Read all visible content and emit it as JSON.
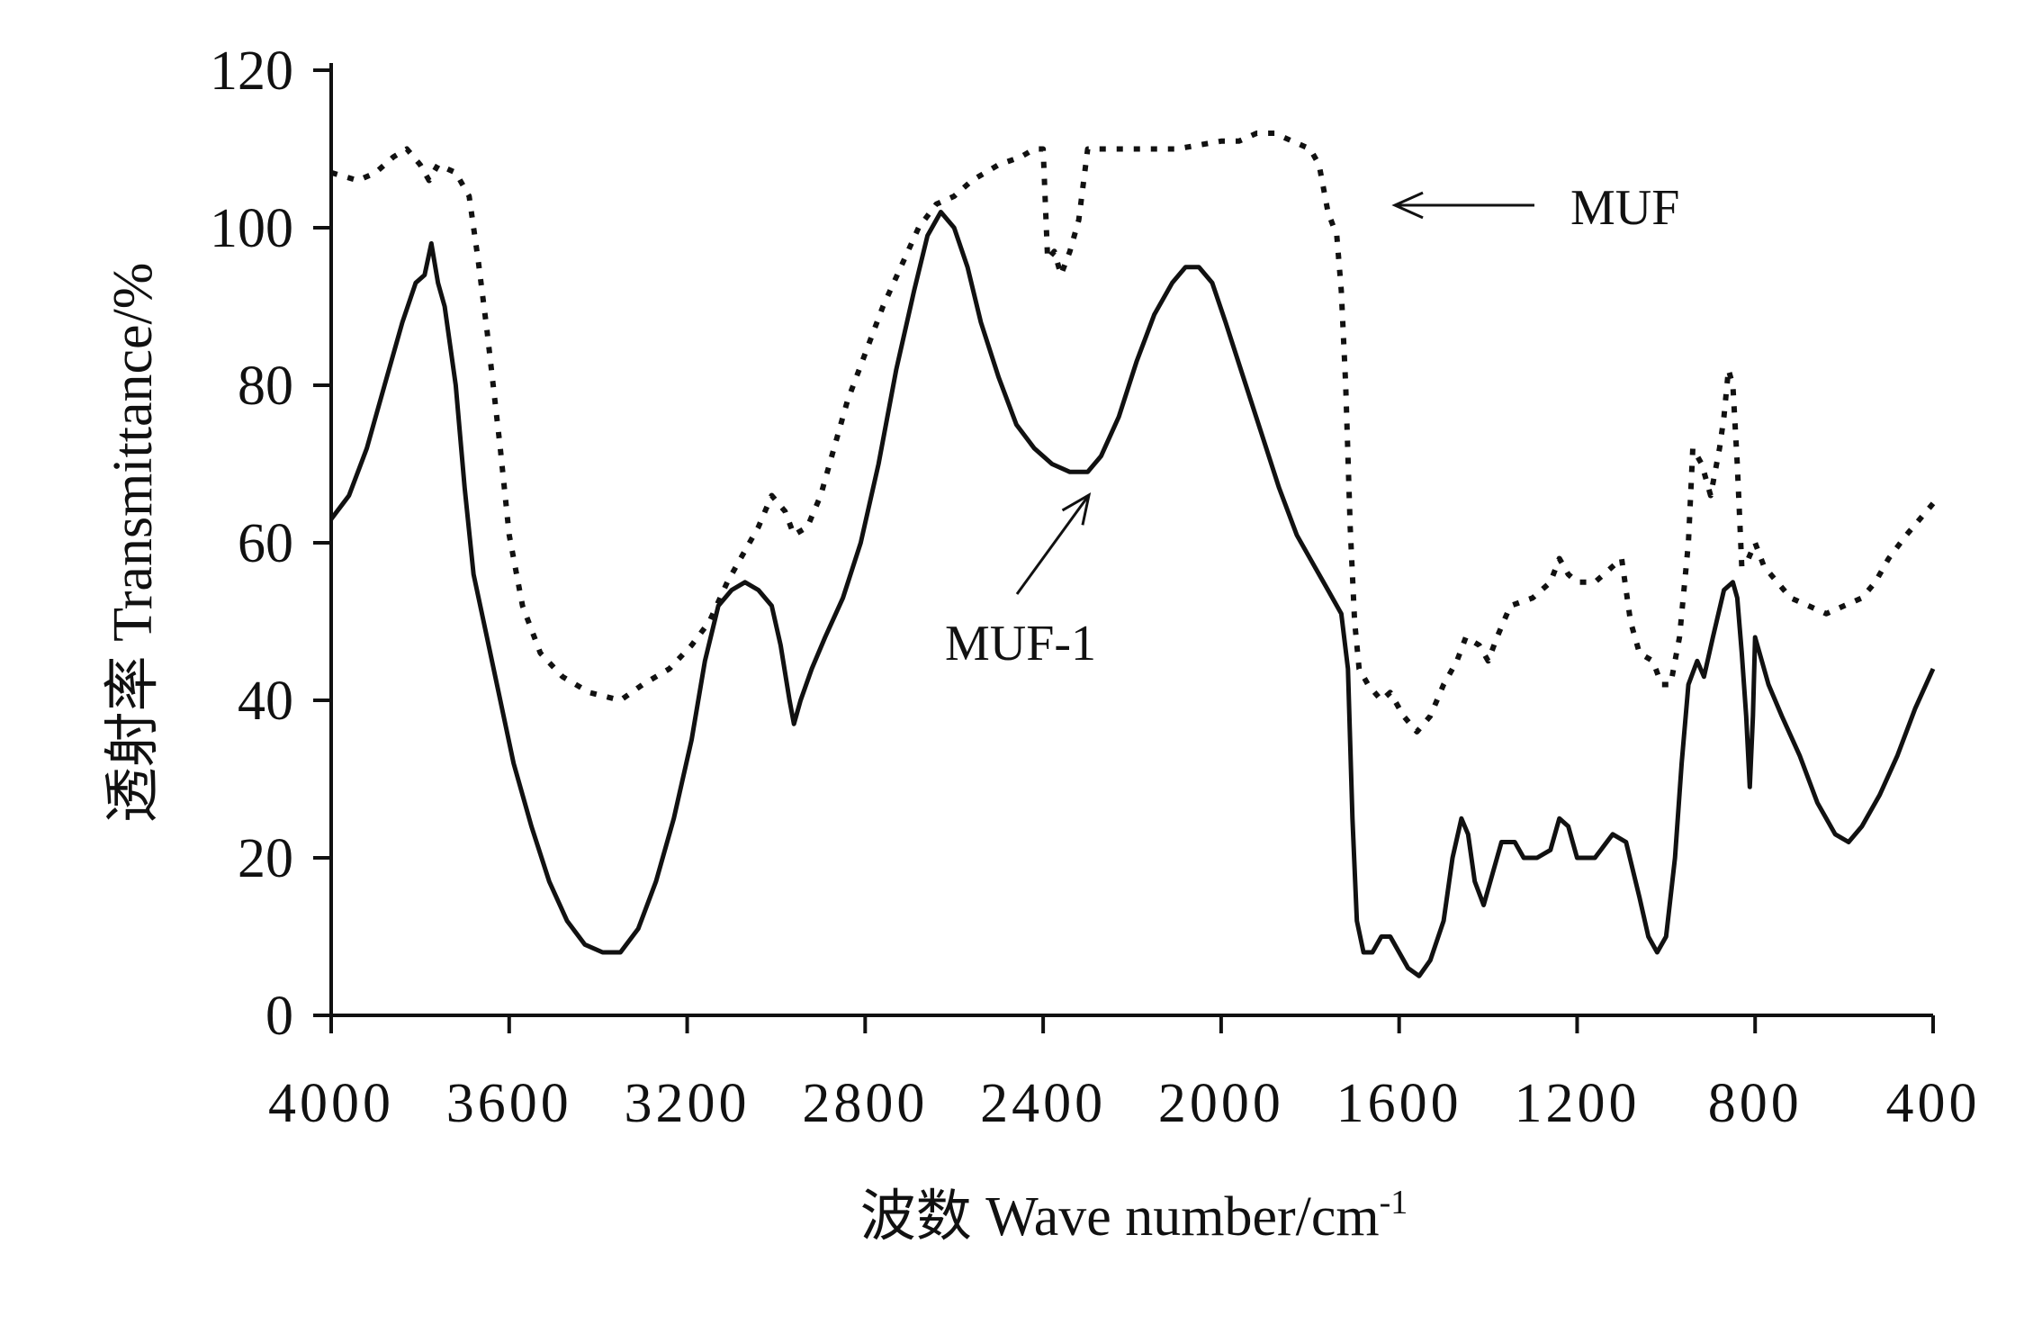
{
  "chart_data": {
    "type": "line",
    "xlabel": "波数 Wave number/cm",
    "xlabel_sup": "-1",
    "ylabel": "透射率 Transmittance/%",
    "xlim": [
      4000,
      400
    ],
    "ylim": [
      0,
      120
    ],
    "x_reversed": true,
    "grid": false,
    "x_ticks": [
      "4000",
      "3600",
      "3200",
      "2800",
      "2400",
      "2000",
      "1600",
      "1200",
      "800",
      "400"
    ],
    "y_ticks": [
      "0",
      "20",
      "40",
      "60",
      "80",
      "100",
      "120"
    ],
    "series": [
      {
        "name": "MUF",
        "style": "dotted",
        "color": "#111111",
        "points": [
          [
            4000,
            107
          ],
          [
            3940,
            106
          ],
          [
            3900,
            107
          ],
          [
            3860,
            109
          ],
          [
            3830,
            110
          ],
          [
            3800,
            108
          ],
          [
            3780,
            106
          ],
          [
            3760,
            108
          ],
          [
            3720,
            107
          ],
          [
            3690,
            104
          ],
          [
            3670,
            96
          ],
          [
            3650,
            87
          ],
          [
            3620,
            72
          ],
          [
            3600,
            61
          ],
          [
            3570,
            52
          ],
          [
            3530,
            46
          ],
          [
            3480,
            43
          ],
          [
            3420,
            41
          ],
          [
            3350,
            40
          ],
          [
            3300,
            42
          ],
          [
            3240,
            44
          ],
          [
            3190,
            47
          ],
          [
            3150,
            50
          ],
          [
            3110,
            55
          ],
          [
            3070,
            59
          ],
          [
            3040,
            62
          ],
          [
            3010,
            66
          ],
          [
            2980,
            64
          ],
          [
            2960,
            61
          ],
          [
            2930,
            62
          ],
          [
            2900,
            66
          ],
          [
            2870,
            72
          ],
          [
            2840,
            78
          ],
          [
            2800,
            84
          ],
          [
            2760,
            90
          ],
          [
            2720,
            95
          ],
          [
            2680,
            100
          ],
          [
            2640,
            103
          ],
          [
            2600,
            104
          ],
          [
            2560,
            106
          ],
          [
            2500,
            108
          ],
          [
            2450,
            109
          ],
          [
            2420,
            110
          ],
          [
            2400,
            110
          ],
          [
            2390,
            96
          ],
          [
            2375,
            97
          ],
          [
            2360,
            94
          ],
          [
            2340,
            97
          ],
          [
            2320,
            101
          ],
          [
            2300,
            110
          ],
          [
            2200,
            110
          ],
          [
            2100,
            110
          ],
          [
            2000,
            111
          ],
          [
            1960,
            111
          ],
          [
            1920,
            112
          ],
          [
            1880,
            112
          ],
          [
            1840,
            111
          ],
          [
            1800,
            110
          ],
          [
            1780,
            108
          ],
          [
            1760,
            102
          ],
          [
            1740,
            99
          ],
          [
            1730,
            92
          ],
          [
            1720,
            80
          ],
          [
            1710,
            62
          ],
          [
            1700,
            50
          ],
          [
            1690,
            44
          ],
          [
            1670,
            42
          ],
          [
            1640,
            40
          ],
          [
            1620,
            41
          ],
          [
            1590,
            38
          ],
          [
            1560,
            36
          ],
          [
            1530,
            38
          ],
          [
            1500,
            42
          ],
          [
            1470,
            45
          ],
          [
            1450,
            48
          ],
          [
            1420,
            47
          ],
          [
            1400,
            45
          ],
          [
            1380,
            48
          ],
          [
            1350,
            52
          ],
          [
            1300,
            53
          ],
          [
            1260,
            55
          ],
          [
            1240,
            58
          ],
          [
            1220,
            56
          ],
          [
            1200,
            55
          ],
          [
            1160,
            55
          ],
          [
            1120,
            57
          ],
          [
            1100,
            58
          ],
          [
            1080,
            50
          ],
          [
            1060,
            46
          ],
          [
            1030,
            45
          ],
          [
            1010,
            42
          ],
          [
            990,
            42
          ],
          [
            970,
            48
          ],
          [
            950,
            60
          ],
          [
            940,
            72
          ],
          [
            920,
            70
          ],
          [
            900,
            66
          ],
          [
            880,
            72
          ],
          [
            870,
            76
          ],
          [
            860,
            82
          ],
          [
            850,
            80
          ],
          [
            840,
            70
          ],
          [
            830,
            57
          ],
          [
            815,
            58
          ],
          [
            800,
            60
          ],
          [
            780,
            57
          ],
          [
            750,
            55
          ],
          [
            720,
            53
          ],
          [
            680,
            52
          ],
          [
            640,
            51
          ],
          [
            600,
            52
          ],
          [
            560,
            53
          ],
          [
            530,
            55
          ],
          [
            500,
            58
          ],
          [
            460,
            61
          ],
          [
            430,
            63
          ],
          [
            400,
            65
          ]
        ]
      },
      {
        "name": "MUF-1",
        "style": "solid",
        "color": "#111111",
        "points": [
          [
            4000,
            63
          ],
          [
            3960,
            66
          ],
          [
            3920,
            72
          ],
          [
            3880,
            80
          ],
          [
            3840,
            88
          ],
          [
            3810,
            93
          ],
          [
            3790,
            94
          ],
          [
            3775,
            98
          ],
          [
            3760,
            93
          ],
          [
            3745,
            90
          ],
          [
            3720,
            80
          ],
          [
            3700,
            67
          ],
          [
            3680,
            56
          ],
          [
            3650,
            48
          ],
          [
            3620,
            40
          ],
          [
            3590,
            32
          ],
          [
            3550,
            24
          ],
          [
            3510,
            17
          ],
          [
            3470,
            12
          ],
          [
            3430,
            9
          ],
          [
            3390,
            8
          ],
          [
            3350,
            8
          ],
          [
            3310,
            11
          ],
          [
            3270,
            17
          ],
          [
            3230,
            25
          ],
          [
            3190,
            35
          ],
          [
            3160,
            45
          ],
          [
            3130,
            52
          ],
          [
            3100,
            54
          ],
          [
            3070,
            55
          ],
          [
            3040,
            54
          ],
          [
            3010,
            52
          ],
          [
            2990,
            47
          ],
          [
            2970,
            40
          ],
          [
            2960,
            37
          ],
          [
            2945,
            40
          ],
          [
            2920,
            44
          ],
          [
            2890,
            48
          ],
          [
            2850,
            53
          ],
          [
            2810,
            60
          ],
          [
            2770,
            70
          ],
          [
            2730,
            82
          ],
          [
            2690,
            92
          ],
          [
            2660,
            99
          ],
          [
            2630,
            102
          ],
          [
            2600,
            100
          ],
          [
            2570,
            95
          ],
          [
            2540,
            88
          ],
          [
            2500,
            81
          ],
          [
            2460,
            75
          ],
          [
            2420,
            72
          ],
          [
            2380,
            70
          ],
          [
            2340,
            69
          ],
          [
            2300,
            69
          ],
          [
            2270,
            71
          ],
          [
            2230,
            76
          ],
          [
            2190,
            83
          ],
          [
            2150,
            89
          ],
          [
            2110,
            93
          ],
          [
            2080,
            95
          ],
          [
            2050,
            95
          ],
          [
            2020,
            93
          ],
          [
            1990,
            88
          ],
          [
            1950,
            81
          ],
          [
            1910,
            74
          ],
          [
            1870,
            67
          ],
          [
            1830,
            61
          ],
          [
            1790,
            57
          ],
          [
            1760,
            54
          ],
          [
            1730,
            51
          ],
          [
            1715,
            44
          ],
          [
            1705,
            25
          ],
          [
            1695,
            12
          ],
          [
            1680,
            8
          ],
          [
            1660,
            8
          ],
          [
            1640,
            10
          ],
          [
            1620,
            10
          ],
          [
            1600,
            8
          ],
          [
            1580,
            6
          ],
          [
            1555,
            5
          ],
          [
            1530,
            7
          ],
          [
            1500,
            12
          ],
          [
            1480,
            20
          ],
          [
            1460,
            25
          ],
          [
            1445,
            23
          ],
          [
            1430,
            17
          ],
          [
            1410,
            14
          ],
          [
            1390,
            18
          ],
          [
            1370,
            22
          ],
          [
            1340,
            22
          ],
          [
            1320,
            20
          ],
          [
            1290,
            20
          ],
          [
            1260,
            21
          ],
          [
            1240,
            25
          ],
          [
            1220,
            24
          ],
          [
            1200,
            20
          ],
          [
            1160,
            20
          ],
          [
            1120,
            23
          ],
          [
            1090,
            22
          ],
          [
            1060,
            15
          ],
          [
            1040,
            10
          ],
          [
            1020,
            8
          ],
          [
            1000,
            10
          ],
          [
            980,
            20
          ],
          [
            965,
            32
          ],
          [
            950,
            42
          ],
          [
            930,
            45
          ],
          [
            915,
            43
          ],
          [
            895,
            48
          ],
          [
            870,
            54
          ],
          [
            850,
            55
          ],
          [
            840,
            53
          ],
          [
            830,
            46
          ],
          [
            820,
            38
          ],
          [
            812,
            29
          ],
          [
            805,
            38
          ],
          [
            800,
            48
          ],
          [
            790,
            46
          ],
          [
            770,
            42
          ],
          [
            740,
            38
          ],
          [
            700,
            33
          ],
          [
            660,
            27
          ],
          [
            620,
            23
          ],
          [
            590,
            22
          ],
          [
            560,
            24
          ],
          [
            520,
            28
          ],
          [
            480,
            33
          ],
          [
            440,
            39
          ],
          [
            400,
            44
          ]
        ]
      }
    ],
    "annotations": [
      {
        "label": "MUF",
        "series": "MUF"
      },
      {
        "label": "MUF-1",
        "series": "MUF-1"
      }
    ]
  }
}
